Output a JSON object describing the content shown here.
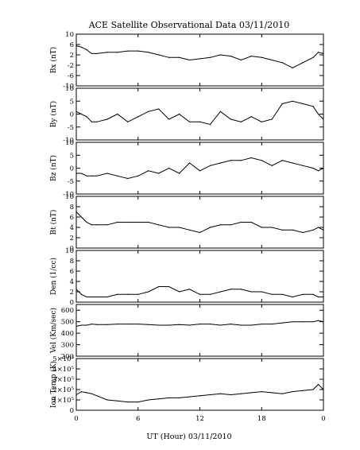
{
  "title": "ACE Satellite Observational Data   03/11/2010",
  "xlabel": "UT (Hour)   03/11/2010",
  "x_tick_labels": [
    "0",
    "6",
    "12",
    "18",
    "0"
  ],
  "chart_data": [
    {
      "type": "line",
      "ylabel": "Bx (nT)",
      "ylim": [
        -10,
        10
      ],
      "y_tick_labels": [
        "10",
        "6",
        "2",
        "-2",
        "-6",
        "-10"
      ],
      "y_tick_values": [
        10,
        6,
        2,
        -2,
        -6,
        -10
      ],
      "x_hours": [
        0,
        0.5,
        1,
        1.5,
        2,
        3,
        4,
        5,
        6,
        7,
        8,
        9,
        10,
        11,
        12,
        13,
        14,
        15,
        16,
        17,
        18,
        19,
        20,
        21,
        22,
        23,
        23.5,
        24
      ],
      "values": [
        5.5,
        5,
        4,
        2.5,
        2.5,
        3,
        3,
        3.5,
        3.5,
        3,
        2,
        1,
        1,
        0,
        0.5,
        1,
        2,
        1.5,
        0,
        1.5,
        1,
        0,
        -1,
        -3,
        -1,
        1,
        3,
        2.5
      ]
    },
    {
      "type": "line",
      "ylabel": "By (nT)",
      "ylim": [
        -10,
        10
      ],
      "y_tick_labels": [
        "10",
        "5",
        "0",
        "-5",
        "-10"
      ],
      "y_tick_values": [
        10,
        5,
        0,
        -5,
        -10
      ],
      "x_hours": [
        0,
        0.5,
        1,
        1.5,
        2,
        3,
        4,
        5,
        6,
        7,
        8,
        9,
        10,
        11,
        12,
        13,
        14,
        15,
        16,
        17,
        18,
        19,
        20,
        21,
        22,
        23,
        23.5,
        24
      ],
      "values": [
        1,
        0,
        -1,
        -3,
        -3,
        -2,
        0,
        -3,
        -1,
        1,
        2,
        -2,
        0,
        -3,
        -3,
        -4,
        1,
        -2,
        -3,
        -1,
        -3,
        -2,
        4,
        5,
        4,
        3,
        0,
        -2
      ]
    },
    {
      "type": "line",
      "ylabel": "Bz (nT)",
      "ylim": [
        -10,
        10
      ],
      "y_tick_labels": [
        "10",
        "5",
        "0",
        "-5",
        "-10"
      ],
      "y_tick_values": [
        10,
        5,
        0,
        -5,
        -10
      ],
      "x_hours": [
        0,
        0.5,
        1,
        1.5,
        2,
        3,
        4,
        5,
        6,
        7,
        8,
        9,
        10,
        11,
        12,
        13,
        14,
        15,
        16,
        17,
        18,
        19,
        20,
        21,
        22,
        23,
        23.5,
        24
      ],
      "values": [
        -2,
        -2,
        -3,
        -3,
        -3,
        -2,
        -3,
        -4,
        -3,
        -1,
        -2,
        0,
        -2,
        2,
        -1,
        1,
        2,
        3,
        3,
        4,
        3,
        1,
        3,
        2,
        1,
        0,
        -1,
        0
      ]
    },
    {
      "type": "line",
      "ylabel": "Bt (nT)",
      "ylim": [
        0,
        10
      ],
      "y_tick_labels": [
        "10",
        "8",
        "6",
        "4",
        "2",
        "0"
      ],
      "y_tick_values": [
        10,
        8,
        6,
        4,
        2,
        0
      ],
      "x_hours": [
        0,
        0.5,
        1,
        1.5,
        2,
        3,
        4,
        5,
        6,
        7,
        8,
        9,
        10,
        11,
        12,
        13,
        14,
        15,
        16,
        17,
        18,
        19,
        20,
        21,
        22,
        23,
        23.5,
        24
      ],
      "values": [
        7,
        6,
        5,
        4.5,
        4.5,
        4.5,
        5,
        5,
        5,
        5,
        4.5,
        4,
        4,
        3.5,
        3,
        4,
        4.5,
        4.5,
        5,
        5,
        4,
        4,
        3.5,
        3.5,
        3,
        3.5,
        4,
        3.5
      ]
    },
    {
      "type": "line",
      "ylabel": "Den (1/cc)",
      "ylim": [
        0,
        10
      ],
      "y_tick_labels": [
        "10",
        "8",
        "6",
        "4",
        "2",
        "0"
      ],
      "y_tick_values": [
        10,
        8,
        6,
        4,
        2,
        0
      ],
      "x_hours": [
        0,
        0.5,
        1,
        1.5,
        2,
        3,
        4,
        5,
        6,
        7,
        8,
        9,
        10,
        11,
        12,
        13,
        14,
        15,
        16,
        17,
        18,
        19,
        20,
        21,
        22,
        23,
        23.5,
        24
      ],
      "values": [
        2.5,
        1.5,
        1,
        1,
        1,
        1,
        1.5,
        1.5,
        1.5,
        2,
        3,
        3,
        2,
        2.5,
        1.5,
        1.5,
        2,
        2.5,
        2.5,
        2,
        2,
        1.5,
        1.5,
        1,
        1.5,
        1.5,
        1,
        1
      ]
    },
    {
      "type": "line",
      "ylabel": "Vel (Km/sec)",
      "ylim": [
        200,
        650
      ],
      "y_tick_labels": [
        "600",
        "500",
        "400",
        "300",
        "200"
      ],
      "y_tick_values": [
        600,
        500,
        400,
        300,
        200
      ],
      "x_hours": [
        0,
        0.5,
        1,
        1.5,
        2,
        3,
        4,
        5,
        6,
        7,
        8,
        9,
        10,
        11,
        12,
        13,
        14,
        15,
        16,
        17,
        18,
        19,
        20,
        21,
        22,
        23,
        23.5,
        24
      ],
      "values": [
        460,
        470,
        470,
        480,
        475,
        475,
        480,
        480,
        480,
        475,
        470,
        470,
        475,
        470,
        480,
        480,
        470,
        480,
        470,
        470,
        480,
        480,
        490,
        500,
        500,
        500,
        510,
        500
      ]
    },
    {
      "type": "line",
      "ylabel": "Ion Temp (K)",
      "ylim": [
        0,
        500000
      ],
      "y_tick_labels": [
        "5×10⁵",
        "4×10⁵",
        "3×10⁵",
        "2×10⁵",
        "1×10⁵",
        "0"
      ],
      "y_tick_values": [
        500000,
        400000,
        300000,
        200000,
        100000,
        0
      ],
      "x_hours": [
        0,
        0.5,
        1,
        1.5,
        2,
        3,
        4,
        5,
        6,
        7,
        8,
        9,
        10,
        11,
        12,
        13,
        14,
        15,
        16,
        17,
        18,
        19,
        20,
        21,
        22,
        23,
        23.5,
        24
      ],
      "values": [
        150000,
        180000,
        170000,
        160000,
        140000,
        100000,
        90000,
        80000,
        80000,
        100000,
        110000,
        120000,
        120000,
        130000,
        140000,
        150000,
        160000,
        150000,
        160000,
        170000,
        180000,
        170000,
        160000,
        180000,
        190000,
        200000,
        250000,
        200000
      ]
    }
  ]
}
